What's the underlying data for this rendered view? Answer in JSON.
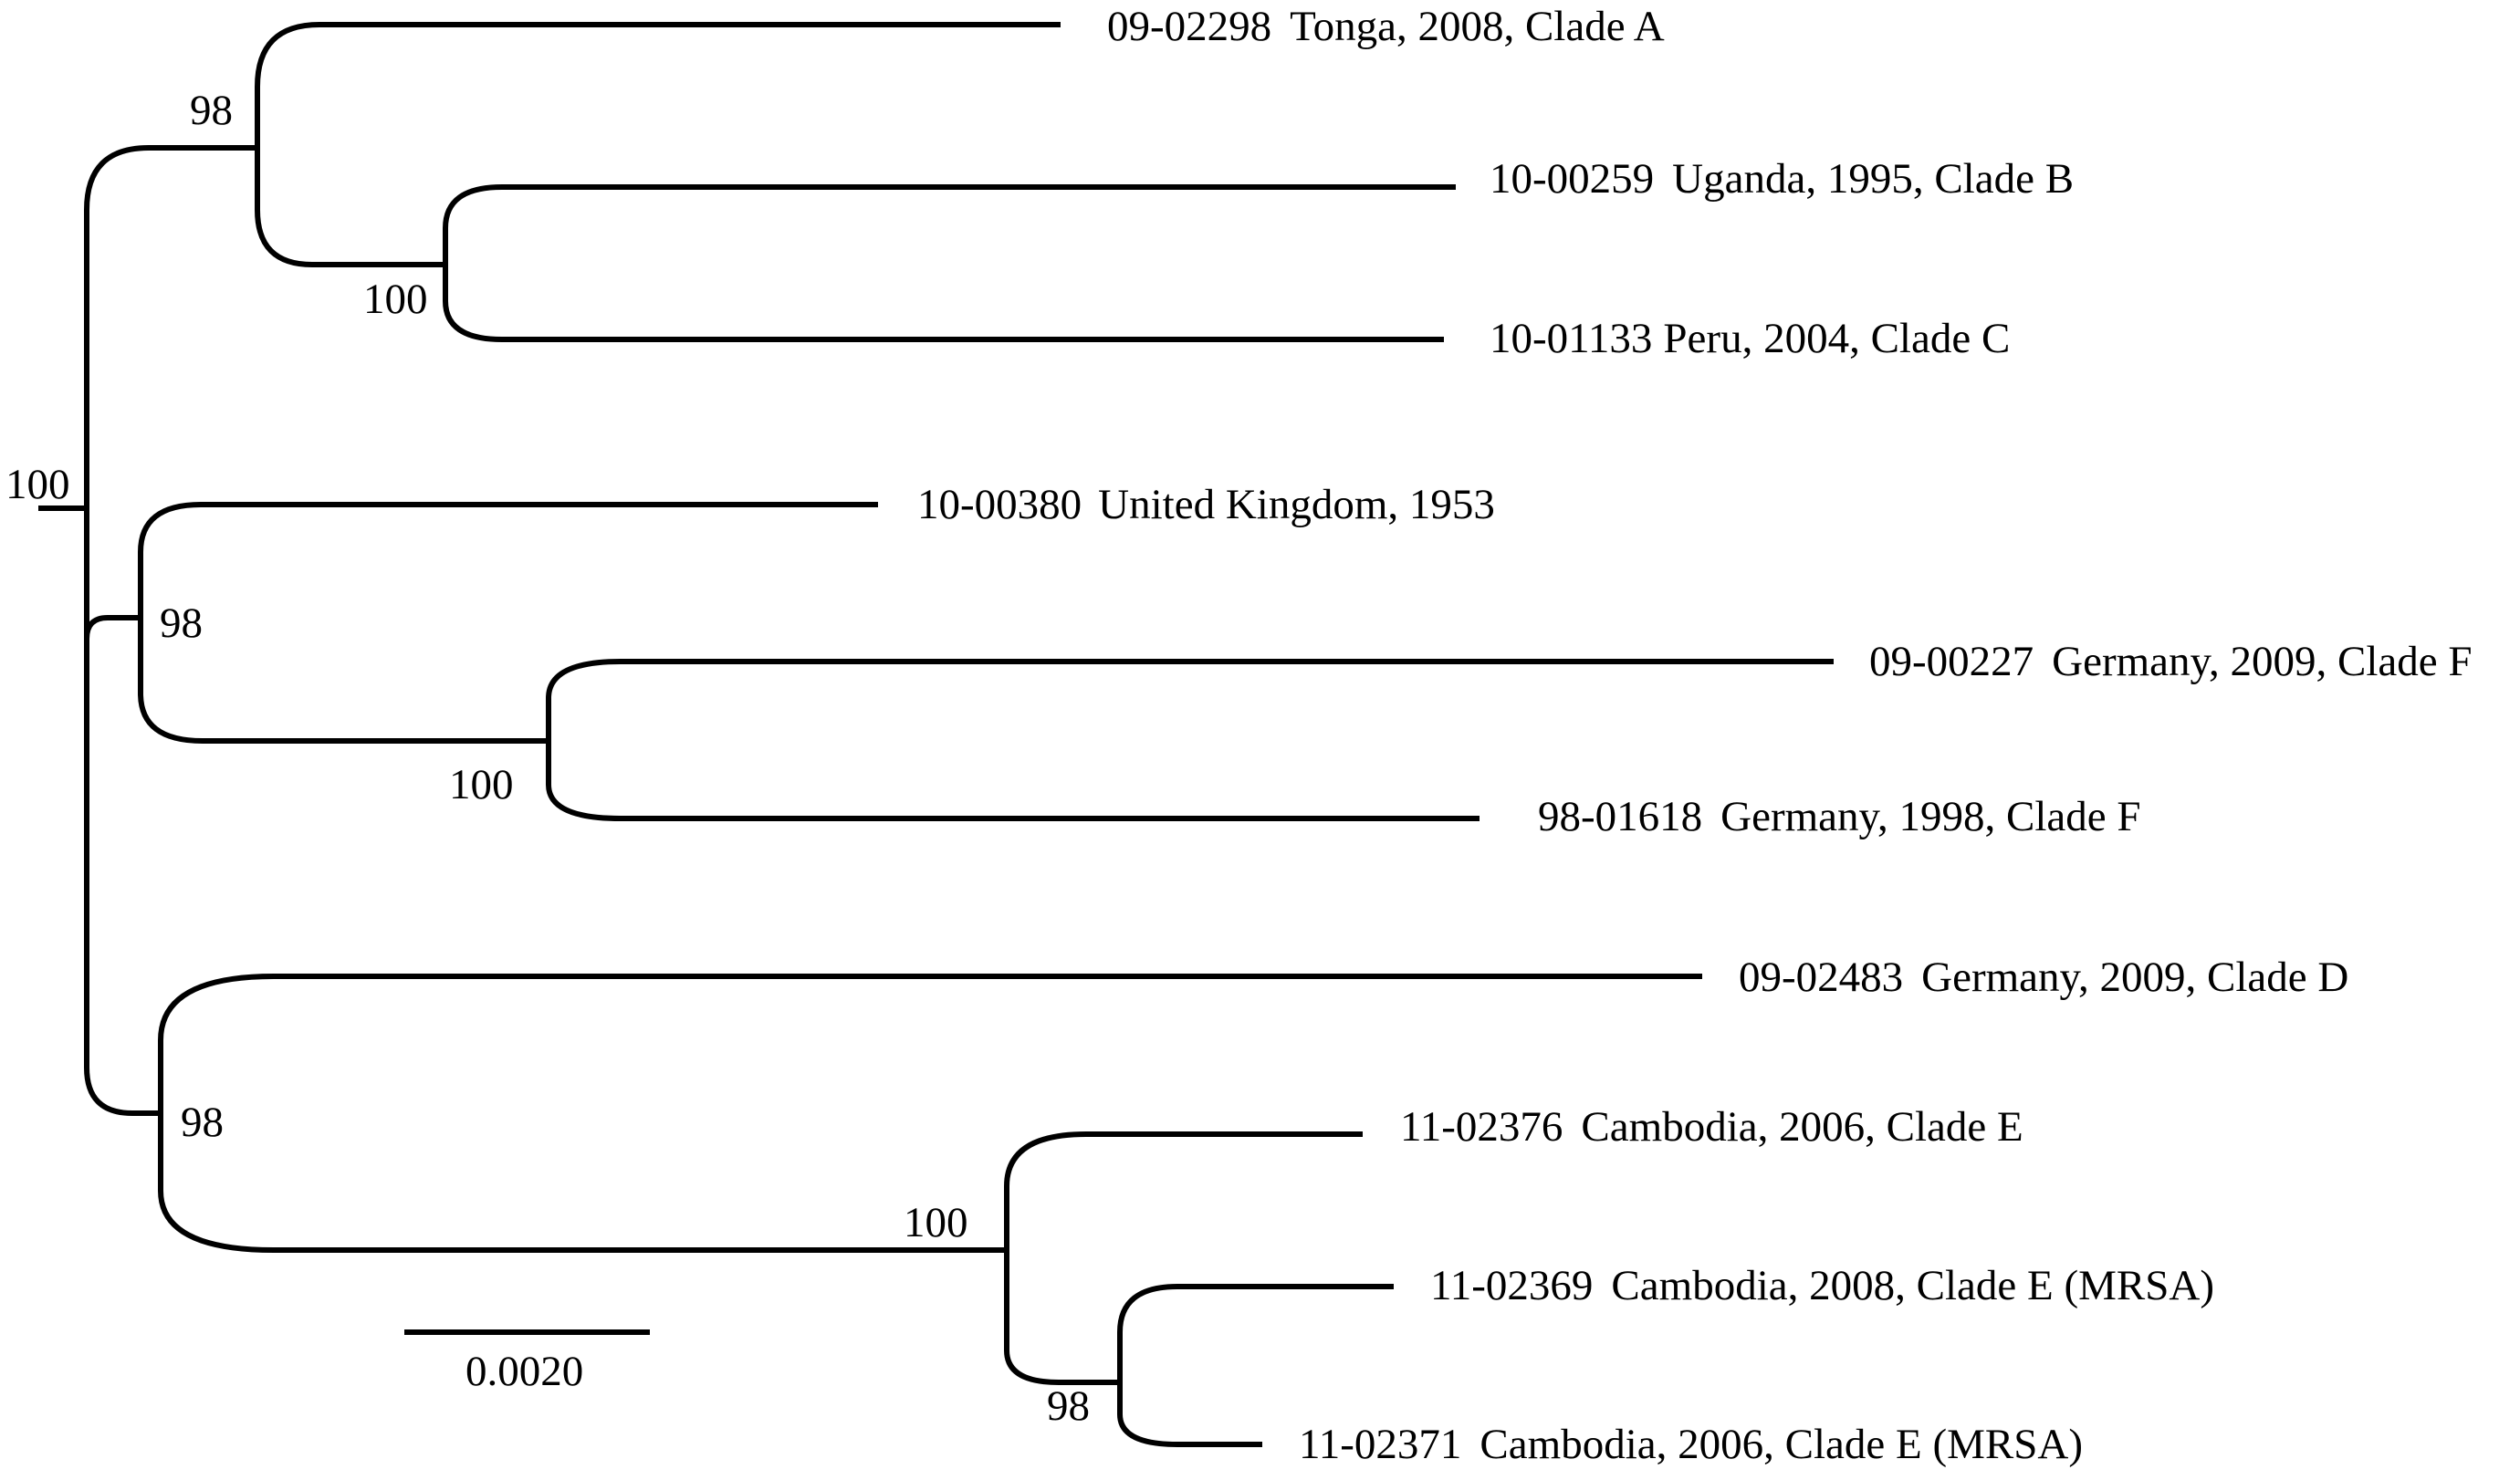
{
  "tree": {
    "leaves": [
      {
        "id": "09-02298",
        "desc": "Tonga, 2008, Clade A"
      },
      {
        "id": "10-00259",
        "desc": "Uganda, 1995, Clade B"
      },
      {
        "id": "10-01133",
        "desc": "Peru, 2004, Clade C"
      },
      {
        "id": "10-00380",
        "desc": "United Kingdom, 1953"
      },
      {
        "id": "09-00227",
        "desc": "Germany, 2009, Clade F"
      },
      {
        "id": "98-01618",
        "desc": "Germany, 1998, Clade F"
      },
      {
        "id": "09-02483",
        "desc": "Germany, 2009, Clade D"
      },
      {
        "id": "11-02376",
        "desc": "Cambodia, 2006, Clade E"
      },
      {
        "id": "11-02369",
        "desc": "Cambodia, 2008, Clade E (MRSA)"
      },
      {
        "id": "11-02371",
        "desc": "Cambodia, 2006, Clade E (MRSA)"
      }
    ],
    "bootstrap": {
      "root": "100",
      "clade_ABC": "98",
      "clade_BC": "100",
      "clade_UKF": "98",
      "clade_F": "100",
      "clade_DE": "98",
      "clade_E": "100",
      "clade_MRSA": "98"
    },
    "scale_bar": {
      "label": "0.0020",
      "value": 0.002
    }
  }
}
